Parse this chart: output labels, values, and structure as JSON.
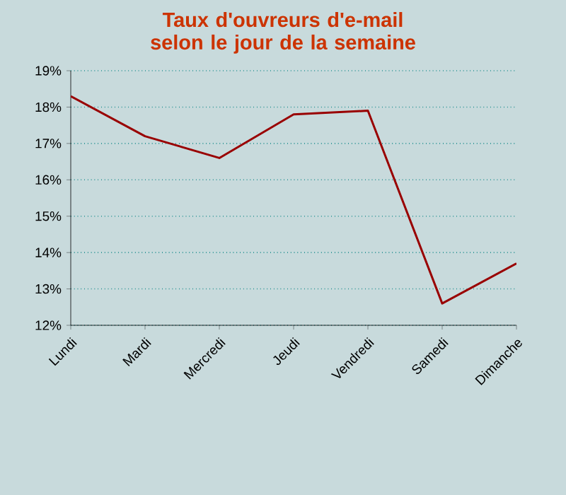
{
  "chart_data": {
    "type": "line",
    "title": "Taux d'ouvreurs d'e-mail selon le jour de la semaine",
    "categories": [
      "Lundi",
      "Mardi",
      "Mercredi",
      "Jeudi",
      "Vendredi",
      "Samedi",
      "Dimanche"
    ],
    "series": [
      {
        "color": "#990000",
        "values": [
          18.3,
          17.2,
          16.6,
          17.8,
          17.9,
          12.6,
          13.7
        ]
      }
    ],
    "ylim": [
      12,
      19
    ],
    "yticks": [
      {
        "value": 12,
        "label": "12%"
      },
      {
        "value": 13,
        "label": "13%"
      },
      {
        "value": 14,
        "label": "14%"
      },
      {
        "value": 15,
        "label": "15%"
      },
      {
        "value": 16,
        "label": "16%"
      },
      {
        "value": 17,
        "label": "17%"
      },
      {
        "value": 18,
        "label": "18%"
      },
      {
        "value": 19,
        "label": "19%"
      }
    ],
    "grid": "y",
    "marker": "none",
    "line_style": "solid"
  }
}
